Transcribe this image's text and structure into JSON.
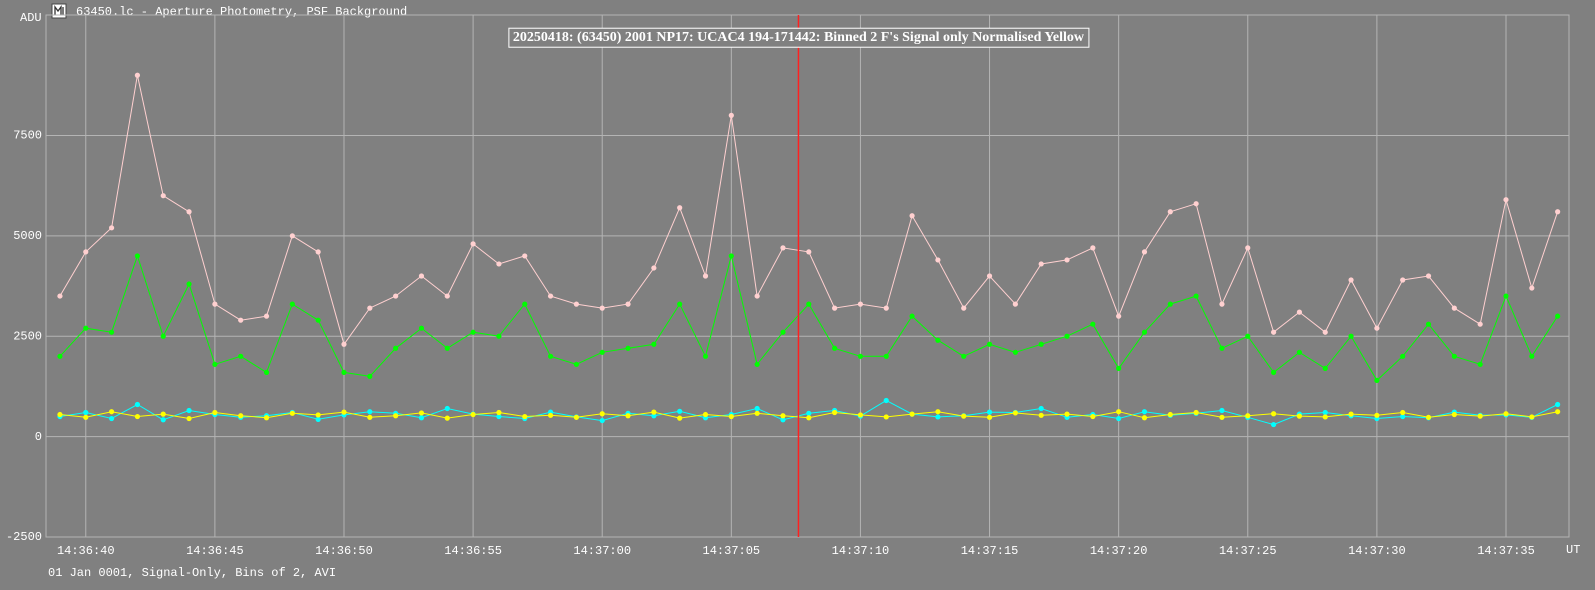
{
  "window_title": "63450.lc - Aperture Photometry, PSF Background",
  "footer": "01 Jan 0001, Signal-Only, Bins of 2, AVI",
  "chart_data": {
    "type": "line",
    "title": "20250418: (63450) 2001 NP17: UCAC4 194-171442: Binned 2 F's Signal only Normalised Yellow",
    "ylabel": "ADU",
    "xlabel": "UT",
    "xlim": [
      52598.46,
      52657.44
    ],
    "ylim": [
      -2500,
      10500
    ],
    "yticks": [
      -2500,
      0,
      2500,
      5000,
      7500
    ],
    "xticks": [
      {
        "value": 52600,
        "label": "14:36:40"
      },
      {
        "value": 52605,
        "label": "14:36:45"
      },
      {
        "value": 52610,
        "label": "14:36:50"
      },
      {
        "value": 52615,
        "label": "14:36:55"
      },
      {
        "value": 52620,
        "label": "14:37:00"
      },
      {
        "value": 52625,
        "label": "14:37:05"
      },
      {
        "value": 52630,
        "label": "14:37:10"
      },
      {
        "value": 52635,
        "label": "14:37:15"
      },
      {
        "value": 52640,
        "label": "14:37:20"
      },
      {
        "value": 52645,
        "label": "14:37:25"
      },
      {
        "value": 52650,
        "label": "14:37:30"
      },
      {
        "value": 52655,
        "label": "14:37:35"
      }
    ],
    "grid": true,
    "cursor_x": 52627.6,
    "cursor_color": "#ff2020",
    "x": [
      52599,
      52600,
      52601,
      52602,
      52603,
      52604,
      52605,
      52606,
      52607,
      52608,
      52609,
      52610,
      52611,
      52612,
      52613,
      52614,
      52615,
      52616,
      52617,
      52618,
      52619,
      52620,
      52621,
      52622,
      52623,
      52624,
      52625,
      52626,
      52627,
      52628,
      52629,
      52630,
      52631,
      52632,
      52633,
      52634,
      52635,
      52636,
      52637,
      52638,
      52639,
      52640,
      52641,
      52642,
      52643,
      52644,
      52645,
      52646,
      52647,
      52648,
      52649,
      52650,
      52651,
      52652,
      52653,
      52654,
      52655,
      52656,
      52657
    ],
    "series": [
      {
        "color": "#ffd0d0",
        "values": [
          3500,
          4600,
          5200,
          9000,
          6000,
          5600,
          3300,
          2900,
          3000,
          5000,
          4600,
          2300,
          3200,
          3500,
          4000,
          3500,
          4800,
          4300,
          4500,
          3500,
          3300,
          3200,
          3300,
          4200,
          5700,
          4000,
          8000,
          3500,
          4700,
          4600,
          3200,
          3300,
          3200,
          5500,
          4400,
          3200,
          4000,
          3300,
          4300,
          4400,
          4700,
          3000,
          4600,
          5600,
          5800,
          3300,
          4700,
          2600,
          3100,
          2600,
          3900,
          2700,
          3900,
          4000,
          3200,
          2800,
          5900,
          3700,
          5600
        ]
      },
      {
        "color": "#00ff00",
        "values": [
          2000,
          2700,
          2600,
          4500,
          2500,
          3800,
          1800,
          2000,
          1600,
          3300,
          2900,
          1600,
          1500,
          2200,
          2700,
          2200,
          2600,
          2500,
          3300,
          2000,
          1800,
          2100,
          2200,
          2300,
          3300,
          2000,
          4500,
          1800,
          2600,
          3300,
          2200,
          2000,
          2000,
          3000,
          2400,
          2000,
          2300,
          2100,
          2300,
          2500,
          2800,
          1700,
          2600,
          3300,
          3500,
          2200,
          2500,
          1600,
          2100,
          1700,
          2500,
          1400,
          2000,
          2800,
          2000,
          1800,
          3500,
          2000,
          3000
        ]
      },
      {
        "color": "#00ffff",
        "values": [
          500,
          600,
          450,
          800,
          420,
          650,
          550,
          480,
          520,
          600,
          430,
          540,
          620,
          580,
          470,
          700,
          560,
          500,
          450,
          610,
          490,
          400,
          580,
          520,
          630,
          470,
          550,
          700,
          420,
          580,
          650,
          510,
          900,
          560,
          490,
          520,
          610,
          600,
          700,
          480,
          550,
          450,
          620,
          530,
          580,
          650,
          480,
          300,
          560,
          600,
          520,
          450,
          500,
          470,
          610,
          530,
          540,
          480,
          800
        ]
      },
      {
        "color": "#ffff00",
        "values": [
          550,
          480,
          620,
          500,
          560,
          450,
          600,
          520,
          470,
          580,
          540,
          610,
          480,
          520,
          590,
          460,
          550,
          600,
          500,
          530,
          480,
          570,
          520,
          610,
          460,
          550,
          500,
          580,
          520,
          470,
          600,
          540,
          490,
          560,
          620,
          510,
          480,
          590,
          530,
          560,
          500,
          620,
          470,
          550,
          600,
          480,
          520,
          570,
          510,
          490,
          560,
          530,
          600,
          480,
          550,
          510,
          570,
          490,
          620
        ]
      }
    ]
  }
}
